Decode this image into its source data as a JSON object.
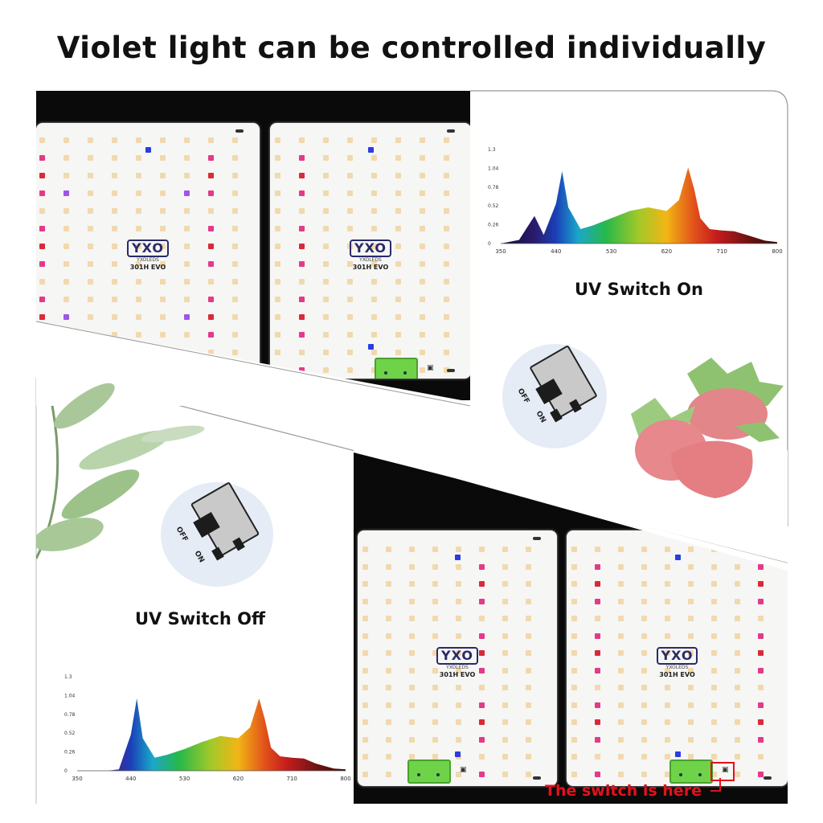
{
  "title": "Violet light can be controlled individually",
  "panel": {
    "logo": "YXO",
    "brand": "YXOLEDS",
    "model": "301H EVO"
  },
  "uv_on": {
    "label": "UV Switch On",
    "off_label": "OFF",
    "on_label": "ON"
  },
  "uv_off": {
    "label": "UV Switch Off",
    "off_label": "OFF",
    "on_label": "ON"
  },
  "switch_note": "The switch is here",
  "chart_data": [
    {
      "type": "area",
      "title": "",
      "xlabel": "",
      "ylabel": "",
      "x_ticks": [
        "350",
        "440",
        "530",
        "620",
        "710",
        "800"
      ],
      "y_ticks": [
        "0",
        "0.26",
        "0.52",
        "0.78",
        "1.04",
        "1.3"
      ],
      "xlim": [
        350,
        800
      ],
      "ylim": [
        0,
        1.3
      ],
      "series": [
        {
          "x": [
            350,
            380,
            395,
            405,
            420,
            440,
            450,
            460,
            480,
            500,
            530,
            560,
            590,
            620,
            640,
            655,
            665,
            675,
            690,
            710,
            730,
            750,
            780,
            800
          ],
          "values": [
            0,
            0.05,
            0.25,
            0.38,
            0.12,
            0.55,
            1.0,
            0.5,
            0.2,
            0.25,
            0.35,
            0.45,
            0.5,
            0.45,
            0.6,
            1.05,
            0.75,
            0.35,
            0.2,
            0.18,
            0.17,
            0.12,
            0.04,
            0.02
          ]
        }
      ]
    },
    {
      "type": "area",
      "title": "",
      "xlabel": "",
      "ylabel": "",
      "x_ticks": [
        "350",
        "440",
        "530",
        "620",
        "710",
        "800"
      ],
      "y_ticks": [
        "0",
        "0.26",
        "0.52",
        "0.78",
        "1.04",
        "1.3"
      ],
      "xlim": [
        350,
        800
      ],
      "ylim": [
        0,
        1.3
      ],
      "series": [
        {
          "x": [
            350,
            380,
            400,
            420,
            440,
            450,
            460,
            480,
            500,
            530,
            560,
            590,
            620,
            640,
            655,
            665,
            675,
            690,
            710,
            730,
            750,
            780,
            800
          ],
          "values": [
            0,
            0,
            0,
            0.02,
            0.5,
            1.0,
            0.45,
            0.18,
            0.22,
            0.3,
            0.4,
            0.48,
            0.45,
            0.6,
            1.0,
            0.7,
            0.32,
            0.2,
            0.18,
            0.17,
            0.1,
            0.03,
            0.02
          ]
        }
      ]
    }
  ]
}
